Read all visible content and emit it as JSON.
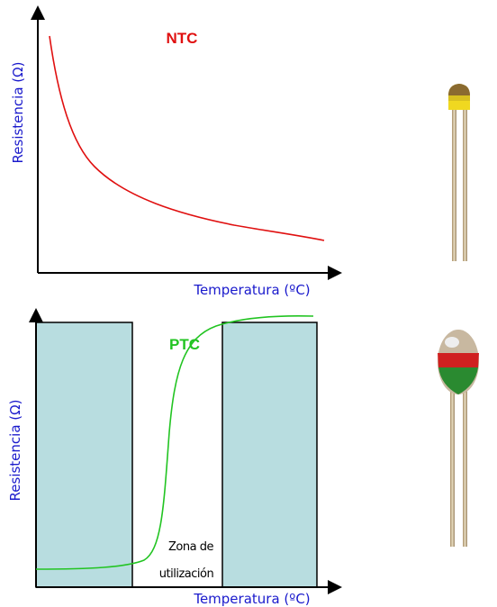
{
  "ntc": {
    "label": "NTC",
    "y_axis": "Resistencia (Ω)",
    "x_axis": "Temperatura (ºC)"
  },
  "ptc": {
    "label": "PTC",
    "y_axis": "Resistencia (Ω)",
    "x_axis": "Temperatura (ºC)",
    "zone_lines": [
      "Zona de",
      "utilización"
    ]
  }
}
